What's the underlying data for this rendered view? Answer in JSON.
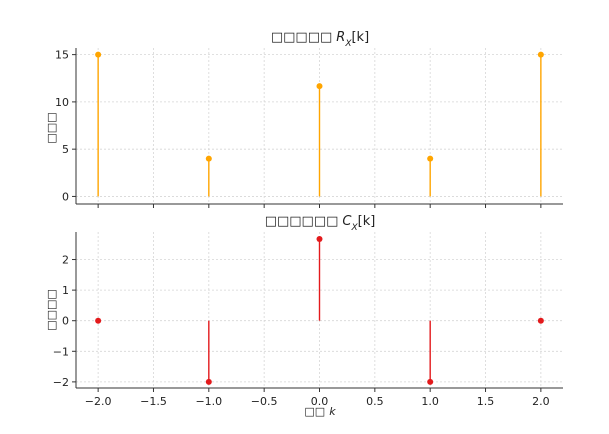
{
  "chart_data": [
    {
      "type": "stem",
      "title_prefix": "□□□□□",
      "title_symbol": "R",
      "title_subscript": "X",
      "title_suffix": "[k]",
      "ylabel": "□□□",
      "xlabel": "",
      "x": [
        -2,
        -1,
        0,
        1,
        2
      ],
      "values": [
        15.0,
        4.0,
        11.67,
        4.0,
        15.0
      ],
      "xlim": [
        -2.2,
        2.2
      ],
      "ylim": [
        -0.8,
        15.7
      ],
      "xticks": [
        -2.0,
        -1.5,
        -1.0,
        -0.5,
        0.0,
        0.5,
        1.0,
        1.5,
        2.0
      ],
      "yticks": [
        0,
        5,
        10,
        15
      ],
      "ytick_labels": [
        "0",
        "5",
        "10",
        "15"
      ],
      "show_xtick_labels": false,
      "grid": true,
      "color": "#ffa500"
    },
    {
      "type": "stem",
      "title_prefix": "□□□□□□",
      "title_symbol": "C",
      "title_subscript": "X",
      "title_suffix": "[k]",
      "ylabel": "□□□□",
      "xlabel_prefix": "□□",
      "xlabel_symbol": "k",
      "x": [
        -2,
        -1,
        0,
        1,
        2
      ],
      "values": [
        0.0,
        -2.0,
        2.67,
        -2.0,
        0.0
      ],
      "xlim": [
        -2.2,
        2.2
      ],
      "ylim": [
        -2.2,
        2.9
      ],
      "xticks": [
        -2.0,
        -1.5,
        -1.0,
        -0.5,
        0.0,
        0.5,
        1.0,
        1.5,
        2.0
      ],
      "xtick_labels": [
        "−2.0",
        "−1.5",
        "−1.0",
        "−0.5",
        "0.0",
        "0.5",
        "1.0",
        "1.5",
        "2.0"
      ],
      "yticks": [
        -2,
        -1,
        0,
        1,
        2
      ],
      "ytick_labels": [
        "−2",
        "−1",
        "0",
        "1",
        "2"
      ],
      "show_xtick_labels": true,
      "grid": true,
      "color": "#e31a1c"
    }
  ]
}
